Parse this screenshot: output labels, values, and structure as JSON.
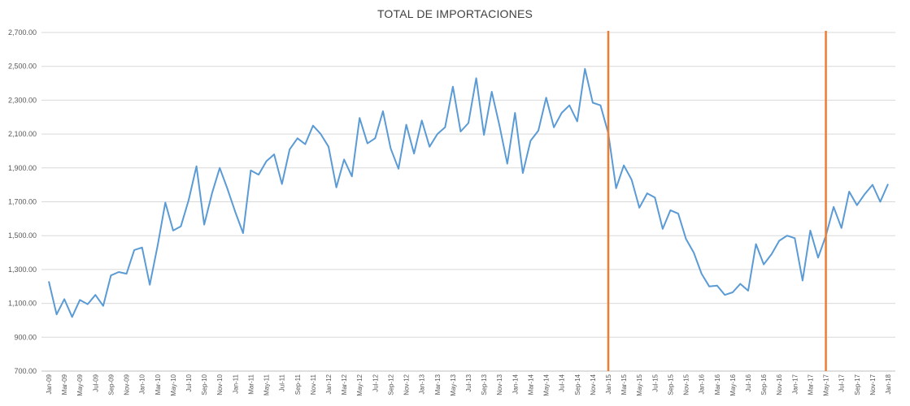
{
  "chart_data": {
    "type": "line",
    "title": "TOTAL  DE IMPORTACIONES",
    "xlabel": "",
    "ylabel": "",
    "ylim": [
      700,
      2700
    ],
    "yticks": [
      700,
      900,
      1100,
      1300,
      1500,
      1700,
      1900,
      2100,
      2300,
      2500,
      2700
    ],
    "ytick_labels": [
      "700.00",
      "900.00",
      "1,100.00",
      "1,300.00",
      "1,500.00",
      "1,700.00",
      "1,900.00",
      "2,100.00",
      "2,300.00",
      "2,500.00",
      "2,700.00"
    ],
    "grid": true,
    "line_color": "#5b9bd5",
    "marker_color": "#ed7d31",
    "x": [
      "Jan-09",
      "Feb-09",
      "Mar-09",
      "Apr-09",
      "May-09",
      "Jun-09",
      "Jul-09",
      "Aug-09",
      "Sep-09",
      "Oct-09",
      "Nov-09",
      "Dec-09",
      "Jan-10",
      "Feb-10",
      "Mar-10",
      "Apr-10",
      "May-10",
      "Jun-10",
      "Jul-10",
      "Aug-10",
      "Sep-10",
      "Oct-10",
      "Nov-10",
      "Dec-10",
      "Jan-11",
      "Feb-11",
      "Mar-11",
      "Apr-11",
      "May-11",
      "Jun-11",
      "Jul-11",
      "Aug-11",
      "Sep-11",
      "Oct-11",
      "Nov-11",
      "Dec-11",
      "Jan-12",
      "Feb-12",
      "Mar-12",
      "Apr-12",
      "May-12",
      "Jun-12",
      "Jul-12",
      "Aug-12",
      "Sep-12",
      "Oct-12",
      "Nov-12",
      "Dec-12",
      "Jan-13",
      "Feb-13",
      "Mar-13",
      "Apr-13",
      "May-13",
      "Jun-13",
      "Jul-13",
      "Aug-13",
      "Sep-13",
      "Oct-13",
      "Nov-13",
      "Dec-13",
      "Jan-14",
      "Feb-14",
      "Mar-14",
      "Apr-14",
      "May-14",
      "Jun-14",
      "Jul-14",
      "Aug-14",
      "Sep-14",
      "Oct-14",
      "Nov-14",
      "Dec-14",
      "Jan-15",
      "Feb-15",
      "Mar-15",
      "Apr-15",
      "May-15",
      "Jun-15",
      "Jul-15",
      "Aug-15",
      "Sep-15",
      "Oct-15",
      "Nov-15",
      "Dec-15",
      "Jan-16",
      "Feb-16",
      "Mar-16",
      "Apr-16",
      "May-16",
      "Jun-16",
      "Jul-16",
      "Aug-16",
      "Sep-16",
      "Oct-16",
      "Nov-16",
      "Dec-16",
      "Jan-17",
      "Feb-17",
      "Mar-17",
      "Apr-17",
      "May-17",
      "Jun-17",
      "Jul-17",
      "Aug-17",
      "Sep-17",
      "Oct-17",
      "Nov-17",
      "Dec-17",
      "Jan-18"
    ],
    "xtick_labels": [
      "Jan-09",
      "Mar-09",
      "May-09",
      "Jul-09",
      "Sep-09",
      "Nov-09",
      "Jan-10",
      "Mar-10",
      "May-10",
      "Jul-10",
      "Sep-10",
      "Nov-10",
      "Jan-11",
      "Mar-11",
      "May-11",
      "Jul-11",
      "Sep-11",
      "Nov-11",
      "Jan-12",
      "Mar-12",
      "May-12",
      "Jul-12",
      "Sep-12",
      "Nov-12",
      "Jan-13",
      "Mar-13",
      "May-13",
      "Jul-13",
      "Sep-13",
      "Nov-13",
      "Jan-14",
      "Mar-14",
      "May-14",
      "Jul-14",
      "Sep-14",
      "Nov-14",
      "Jan-15",
      "Mar-15",
      "May-15",
      "Jul-15",
      "Sep-15",
      "Nov-15",
      "Jan-16",
      "Mar-16",
      "May-16",
      "Jul-16",
      "Sep-16",
      "Nov-16",
      "Jan-17",
      "Mar-17",
      "May-17",
      "Jul-17",
      "Sep-17",
      "Nov-17",
      "Jan-18"
    ],
    "series": [
      {
        "name": "Total de importaciones",
        "values": [
          1230,
          1035,
          1125,
          1020,
          1120,
          1095,
          1150,
          1085,
          1265,
          1285,
          1275,
          1415,
          1430,
          1210,
          1440,
          1695,
          1530,
          1555,
          1710,
          1910,
          1565,
          1750,
          1900,
          1775,
          1640,
          1515,
          1885,
          1860,
          1940,
          1980,
          1805,
          2010,
          2075,
          2040,
          2150,
          2100,
          2025,
          1785,
          1950,
          1850,
          2195,
          2045,
          2075,
          2235,
          2015,
          1895,
          2155,
          1985,
          2180,
          2025,
          2100,
          2140,
          2380,
          2115,
          2165,
          2430,
          2095,
          2350,
          2150,
          1925,
          2225,
          1870,
          2060,
          2120,
          2315,
          2140,
          2225,
          2270,
          2175,
          2485,
          2285,
          2270,
          2105,
          1780,
          1915,
          1830,
          1665,
          1750,
          1725,
          1540,
          1650,
          1630,
          1480,
          1400,
          1275,
          1200,
          1205,
          1150,
          1165,
          1215,
          1175,
          1450,
          1330,
          1390,
          1470,
          1500,
          1485,
          1235,
          1530,
          1370,
          1500,
          1670,
          1545,
          1760,
          1680,
          1745,
          1800,
          1700,
          1805
        ]
      }
    ],
    "vertical_markers": [
      "Jan-15",
      "May-17"
    ]
  }
}
